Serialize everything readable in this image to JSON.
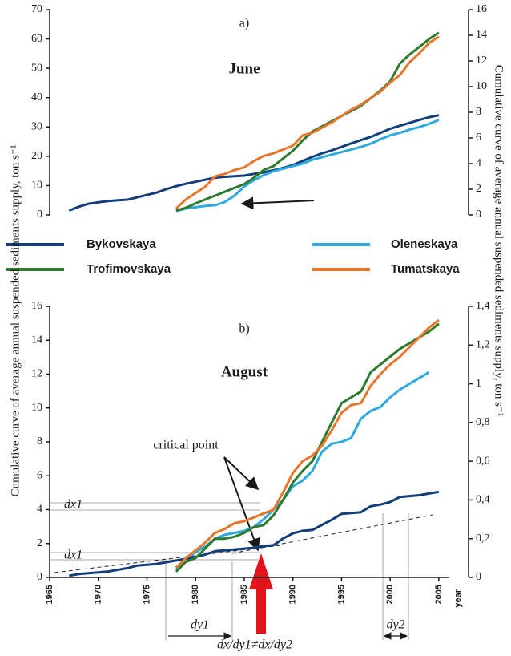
{
  "chart_data": [
    {
      "type": "line",
      "panel": "a)",
      "subtitle": "June",
      "y2label": "Cumulative curve of average annual suspended sediments supply, ton s⁻¹",
      "x": [
        1967,
        1968,
        1969,
        1970,
        1971,
        1972,
        1973,
        1974,
        1975,
        1976,
        1977,
        1978,
        1979,
        1980,
        1981,
        1982,
        1983,
        1984,
        1985,
        1986,
        1987,
        1988,
        1989,
        1990,
        1991,
        1992,
        1993,
        1994,
        1995,
        1996,
        1997,
        1998,
        1999,
        2000,
        2001,
        2002,
        2003,
        2004,
        2005
      ],
      "xlim": [
        1965,
        2006
      ],
      "ylim": [
        0,
        70
      ],
      "yticks": [
        0,
        10,
        20,
        30,
        40,
        50,
        60,
        70
      ],
      "y2lim": [
        0,
        16
      ],
      "y2ticks": [
        0,
        2,
        4,
        6,
        8,
        10,
        12,
        14,
        16
      ],
      "series": [
        {
          "name": "Bykovskaya",
          "color": "#123f7a",
          "values": [
            1.5,
            2.8,
            3.8,
            4.3,
            4.7,
            5.0,
            5.2,
            6.0,
            6.8,
            7.6,
            8.8,
            9.8,
            10.6,
            11.3,
            12.0,
            12.7,
            13.0,
            13.2,
            13.4,
            14.0,
            14.5,
            15.2,
            16.0,
            17.0,
            18.4,
            19.8,
            21.0,
            22.0,
            23.2,
            24.4,
            25.5,
            26.6,
            28.0,
            29.4,
            30.4,
            31.4,
            32.4,
            33.3,
            34.0
          ]
        },
        {
          "name": "Oleneskaya",
          "color": "#2eaae1",
          "axis": "y2",
          "values": [
            null,
            null,
            null,
            null,
            null,
            null,
            null,
            null,
            null,
            null,
            null,
            0.3,
            0.5,
            0.6,
            0.7,
            0.75,
            1.0,
            1.5,
            2.2,
            2.7,
            3.1,
            3.4,
            3.6,
            3.8,
            4.0,
            4.3,
            4.5,
            4.7,
            4.9,
            5.1,
            5.3,
            5.55,
            5.9,
            6.2,
            6.4,
            6.65,
            6.85,
            7.1,
            7.4
          ]
        },
        {
          "name": "Trofimovskaya",
          "color": "#2e7a2e",
          "axis": "y2",
          "values": [
            null,
            null,
            null,
            null,
            null,
            null,
            null,
            null,
            null,
            null,
            null,
            0.35,
            0.55,
            0.9,
            1.2,
            1.5,
            1.8,
            2.1,
            2.4,
            2.9,
            3.5,
            3.8,
            4.4,
            5.0,
            5.8,
            6.5,
            6.9,
            7.3,
            7.7,
            8.1,
            8.5,
            9.1,
            9.7,
            10.4,
            11.8,
            12.5,
            13.1,
            13.7,
            14.2
          ]
        },
        {
          "name": "Tumatskaya",
          "color": "#e8762b",
          "axis": "y2",
          "values": [
            null,
            null,
            null,
            null,
            null,
            null,
            null,
            null,
            null,
            null,
            null,
            0.5,
            1.2,
            1.7,
            2.2,
            3.0,
            3.2,
            3.5,
            3.7,
            4.2,
            4.6,
            4.8,
            5.1,
            5.4,
            6.2,
            6.4,
            6.8,
            7.2,
            7.7,
            8.2,
            8.6,
            9.1,
            9.6,
            10.3,
            10.9,
            11.9,
            12.6,
            13.4,
            13.9
          ]
        }
      ]
    },
    {
      "type": "line",
      "panel": "b)",
      "subtitle": "August",
      "ylabel": "Cumulative curve of average annual suspended sediments supply, ton s⁻¹",
      "xlabel": "year",
      "annotations": [
        "critical point",
        "dx1",
        "dx1",
        "dy1",
        "dy2",
        "dx/dy1≠dx/dy2"
      ],
      "x": [
        1967,
        1968,
        1969,
        1970,
        1971,
        1972,
        1973,
        1974,
        1975,
        1976,
        1977,
        1978,
        1979,
        1980,
        1981,
        1982,
        1983,
        1984,
        1985,
        1986,
        1987,
        1988,
        1989,
        1990,
        1991,
        1992,
        1993,
        1994,
        1995,
        1996,
        1997,
        1998,
        1999,
        2000,
        2001,
        2002,
        2003,
        2004,
        2005
      ],
      "xlim": [
        1965,
        2006
      ],
      "xticks": [
        1965,
        1970,
        1975,
        1980,
        1985,
        1990,
        1995,
        2000,
        2005
      ],
      "ylim": [
        0,
        16
      ],
      "yticks": [
        0,
        2,
        4,
        6,
        8,
        10,
        12,
        14,
        16
      ],
      "y2lim": [
        0,
        1.4
      ],
      "y2ticks": [
        0,
        {
          "value": 0.2,
          "label": "0,2"
        },
        {
          "value": 0.4,
          "label": "0,4"
        },
        {
          "value": 0.6,
          "label": "0,6"
        },
        {
          "value": 0.8,
          "label": "0,8"
        },
        1,
        {
          "value": 1.2,
          "label": "1,2"
        },
        {
          "value": 1.4,
          "label": "1,4"
        }
      ],
      "series": [
        {
          "color": "#123f7a",
          "values": [
            0.1,
            0.2,
            0.25,
            0.3,
            0.35,
            0.45,
            0.55,
            0.7,
            0.75,
            0.8,
            0.9,
            1.0,
            1.1,
            1.2,
            1.35,
            1.55,
            1.6,
            1.65,
            1.7,
            1.75,
            1.85,
            1.9,
            2.3,
            2.6,
            2.75,
            2.8,
            3.1,
            3.4,
            3.75,
            3.8,
            3.85,
            4.2,
            4.3,
            4.45,
            4.75,
            4.8,
            4.85,
            4.95,
            5.05
          ]
        },
        {
          "color": "#2eaae1",
          "axis": "y2",
          "values": [
            null,
            null,
            null,
            null,
            null,
            null,
            null,
            null,
            null,
            null,
            null,
            0.04,
            0.1,
            0.13,
            0.16,
            0.2,
            0.22,
            0.23,
            0.24,
            0.26,
            0.3,
            0.35,
            0.4,
            0.47,
            0.5,
            0.55,
            0.65,
            0.69,
            0.7,
            0.72,
            0.82,
            0.86,
            0.88,
            0.93,
            0.97,
            1.0,
            1.03,
            1.06,
            null
          ]
        },
        {
          "color": "#2e7a2e",
          "axis": "y2",
          "values": [
            null,
            null,
            null,
            null,
            null,
            null,
            null,
            null,
            null,
            null,
            null,
            0.03,
            0.08,
            0.1,
            0.15,
            0.2,
            0.2,
            0.21,
            0.23,
            0.26,
            0.27,
            0.32,
            0.4,
            0.49,
            0.55,
            0.6,
            0.7,
            0.8,
            0.9,
            0.93,
            0.96,
            1.06,
            1.1,
            1.14,
            1.18,
            1.21,
            1.24,
            1.27,
            1.31
          ]
        },
        {
          "color": "#e8762b",
          "axis": "y2",
          "values": [
            null,
            null,
            null,
            null,
            null,
            null,
            null,
            null,
            null,
            null,
            null,
            0.05,
            0.1,
            0.14,
            0.18,
            0.23,
            0.25,
            0.28,
            0.29,
            0.31,
            0.33,
            0.35,
            0.44,
            0.54,
            0.6,
            0.63,
            0.68,
            0.76,
            0.85,
            0.89,
            0.9,
            0.99,
            1.05,
            1.1,
            1.14,
            1.19,
            1.24,
            1.29,
            1.33
          ]
        }
      ]
    }
  ]
}
